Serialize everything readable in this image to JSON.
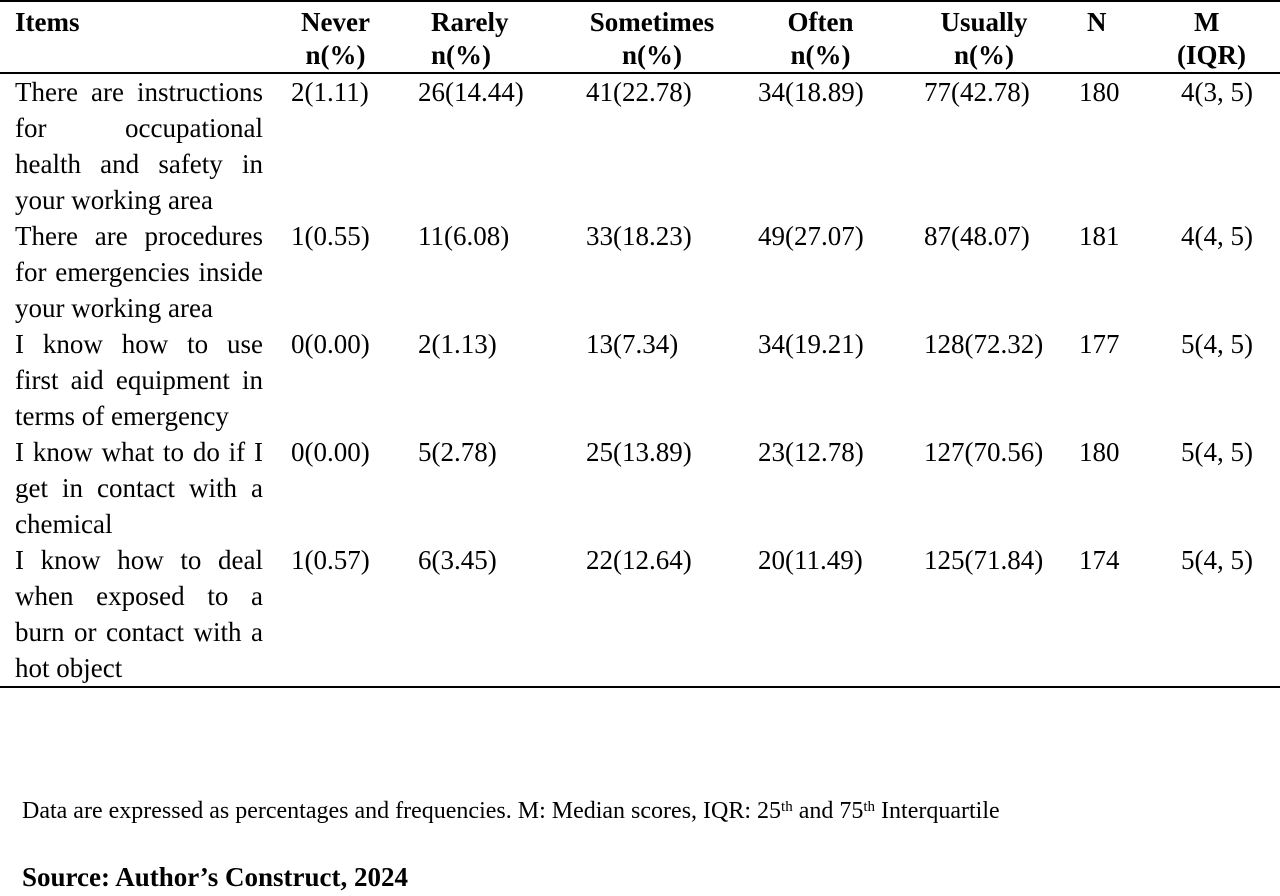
{
  "table": {
    "headers": [
      {
        "line1": "Items",
        "line2": ""
      },
      {
        "line1": "Never",
        "line2": "n(%)"
      },
      {
        "line1": "Rarely",
        "line2": "n(%)"
      },
      {
        "line1": "Sometimes",
        "line2": "n(%)"
      },
      {
        "line1": "Often",
        "line2": "n(%)"
      },
      {
        "line1": "Usually",
        "line2": "n(%)"
      },
      {
        "line1": "N",
        "line2": ""
      },
      {
        "line1": "M",
        "line2": "(IQR)"
      }
    ],
    "rows": [
      {
        "item": "There are instructions for occupational health and safety in your working area",
        "never": "2(1.11)",
        "rarely": "26(14.44)",
        "sometimes": "41(22.78)",
        "often": "34(18.89)",
        "usually": "77(42.78)",
        "n": "180",
        "m": "4(3, 5)"
      },
      {
        "item": "There are procedures for emergencies inside your working area",
        "never": "1(0.55)",
        "rarely": "11(6.08)",
        "sometimes": "33(18.23)",
        "often": "49(27.07)",
        "usually": "87(48.07)",
        "n": "181",
        "m": "4(4, 5)"
      },
      {
        "item": "I know how to use first aid equipment in terms of emergency",
        "never": "0(0.00)",
        "rarely": "2(1.13)",
        "sometimes": "13(7.34)",
        "often": "34(19.21)",
        "usually": "128(72.32)",
        "n": "177",
        "m": "5(4, 5)"
      },
      {
        "item": "I know what to do if I get in contact with a chemical",
        "never": "0(0.00)",
        "rarely": "5(2.78)",
        "sometimes": "25(13.89)",
        "often": "23(12.78)",
        "usually": "127(70.56)",
        "n": "180",
        "m": "5(4, 5)"
      },
      {
        "item": "I know how to deal when exposed to a burn or contact with a hot object",
        "never": "1(0.57)",
        "rarely": "6(3.45)",
        "sometimes": "22(12.64)",
        "often": "20(11.49)",
        "usually": "125(71.84)",
        "n": "174",
        "m": "5(4, 5)"
      }
    ]
  },
  "footnote": {
    "text_before": "Data are expressed as percentages and frequencies. M: Median scores, IQR: 25",
    "sup1": "th",
    "text_mid": " and 75",
    "sup2": "th",
    "text_after": " Interquartile"
  },
  "source": "Source: Author’s Construct, 2024"
}
